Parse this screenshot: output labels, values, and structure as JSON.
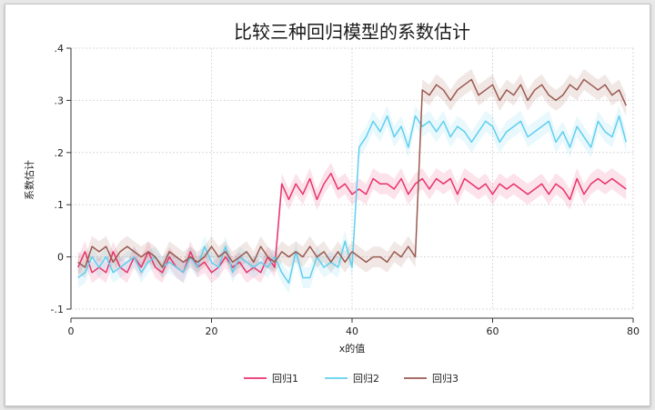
{
  "chart_data": {
    "type": "line",
    "title": "比较三种回归模型的系数估计",
    "xlabel": "x的值",
    "ylabel": "系数估计",
    "xlim": [
      0,
      80
    ],
    "ylim": [
      -0.1,
      0.4
    ],
    "x_ticks": [
      0,
      20,
      40,
      60,
      80
    ],
    "x_tick_labels": [
      "0",
      "20",
      "40",
      "60",
      "80"
    ],
    "y_ticks": [
      -0.1,
      0,
      0.1,
      0.2,
      0.3,
      0.4
    ],
    "y_tick_labels": [
      "-.1",
      "0",
      ".1",
      ".2",
      ".3",
      ".4"
    ],
    "grid": true,
    "legend_position": "bottom",
    "confidence_band_halfwidth": 0.02,
    "x": [
      1,
      2,
      3,
      4,
      5,
      6,
      7,
      8,
      9,
      10,
      11,
      12,
      13,
      14,
      15,
      16,
      17,
      18,
      19,
      20,
      21,
      22,
      23,
      24,
      25,
      26,
      27,
      28,
      29,
      30,
      31,
      32,
      33,
      34,
      35,
      36,
      37,
      38,
      39,
      40,
      41,
      42,
      43,
      44,
      45,
      46,
      47,
      48,
      49,
      50,
      51,
      52,
      53,
      54,
      55,
      56,
      57,
      58,
      59,
      60,
      61,
      62,
      63,
      64,
      65,
      66,
      67,
      68,
      69,
      70,
      71,
      72,
      73,
      74,
      75,
      76,
      77,
      78,
      79
    ],
    "series": [
      {
        "name": "回归1",
        "color": "#e8336b",
        "values": [
          -0.02,
          0.01,
          -0.03,
          -0.02,
          -0.03,
          0.01,
          -0.02,
          -0.03,
          0,
          -0.02,
          0.01,
          -0.02,
          -0.03,
          0,
          -0.02,
          -0.03,
          0.01,
          -0.02,
          -0.01,
          -0.03,
          -0.02,
          0,
          -0.02,
          -0.01,
          -0.03,
          -0.02,
          -0.03,
          0,
          -0.02,
          0.14,
          0.11,
          0.14,
          0.12,
          0.15,
          0.11,
          0.14,
          0.16,
          0.13,
          0.14,
          0.12,
          0.13,
          0.12,
          0.15,
          0.14,
          0.14,
          0.13,
          0.15,
          0.12,
          0.14,
          0.15,
          0.13,
          0.15,
          0.14,
          0.15,
          0.12,
          0.15,
          0.14,
          0.13,
          0.14,
          0.12,
          0.14,
          0.13,
          0.14,
          0.13,
          0.12,
          0.13,
          0.14,
          0.12,
          0.14,
          0.13,
          0.11,
          0.15,
          0.12,
          0.14,
          0.15,
          0.14,
          0.15,
          0.14,
          0.13
        ]
      },
      {
        "name": "回归2",
        "color": "#5fcfee",
        "values": [
          -0.04,
          -0.03,
          0,
          -0.02,
          0,
          -0.03,
          -0.02,
          -0.01,
          0,
          -0.03,
          -0.01,
          0,
          -0.02,
          -0.01,
          -0.02,
          -0.03,
          0,
          -0.02,
          0.02,
          -0.01,
          -0.02,
          0.02,
          -0.03,
          0,
          -0.01,
          -0.02,
          -0.01,
          -0.02,
          0,
          -0.03,
          -0.05,
          0.01,
          -0.04,
          -0.04,
          0,
          -0.02,
          -0.01,
          -0.02,
          0.03,
          -0.02,
          0.21,
          0.23,
          0.26,
          0.24,
          0.27,
          0.23,
          0.25,
          0.21,
          0.27,
          0.25,
          0.26,
          0.24,
          0.26,
          0.23,
          0.25,
          0.24,
          0.22,
          0.24,
          0.26,
          0.25,
          0.22,
          0.24,
          0.25,
          0.26,
          0.23,
          0.24,
          0.25,
          0.26,
          0.22,
          0.24,
          0.21,
          0.25,
          0.23,
          0.21,
          0.26,
          0.24,
          0.23,
          0.27,
          0.22
        ]
      },
      {
        "name": "回归3",
        "color": "#9a5a50",
        "values": [
          -0.01,
          -0.02,
          0.02,
          0.01,
          0.02,
          -0.01,
          0.01,
          0.02,
          0.01,
          0,
          0.01,
          0,
          -0.02,
          0.01,
          0,
          -0.01,
          0,
          -0.01,
          0,
          0.02,
          0,
          0.01,
          -0.01,
          0,
          0.01,
          -0.01,
          0.02,
          0,
          -0.01,
          0.01,
          0,
          0.01,
          0,
          0.02,
          0,
          0.01,
          -0.01,
          0.01,
          -0.01,
          0.01,
          0,
          -0.01,
          0,
          0,
          -0.01,
          0.01,
          0,
          0.02,
          0,
          0.32,
          0.31,
          0.33,
          0.32,
          0.3,
          0.32,
          0.33,
          0.34,
          0.31,
          0.32,
          0.33,
          0.3,
          0.32,
          0.31,
          0.33,
          0.3,
          0.32,
          0.33,
          0.31,
          0.3,
          0.31,
          0.33,
          0.32,
          0.34,
          0.33,
          0.32,
          0.33,
          0.31,
          0.32,
          0.29
        ]
      }
    ]
  }
}
